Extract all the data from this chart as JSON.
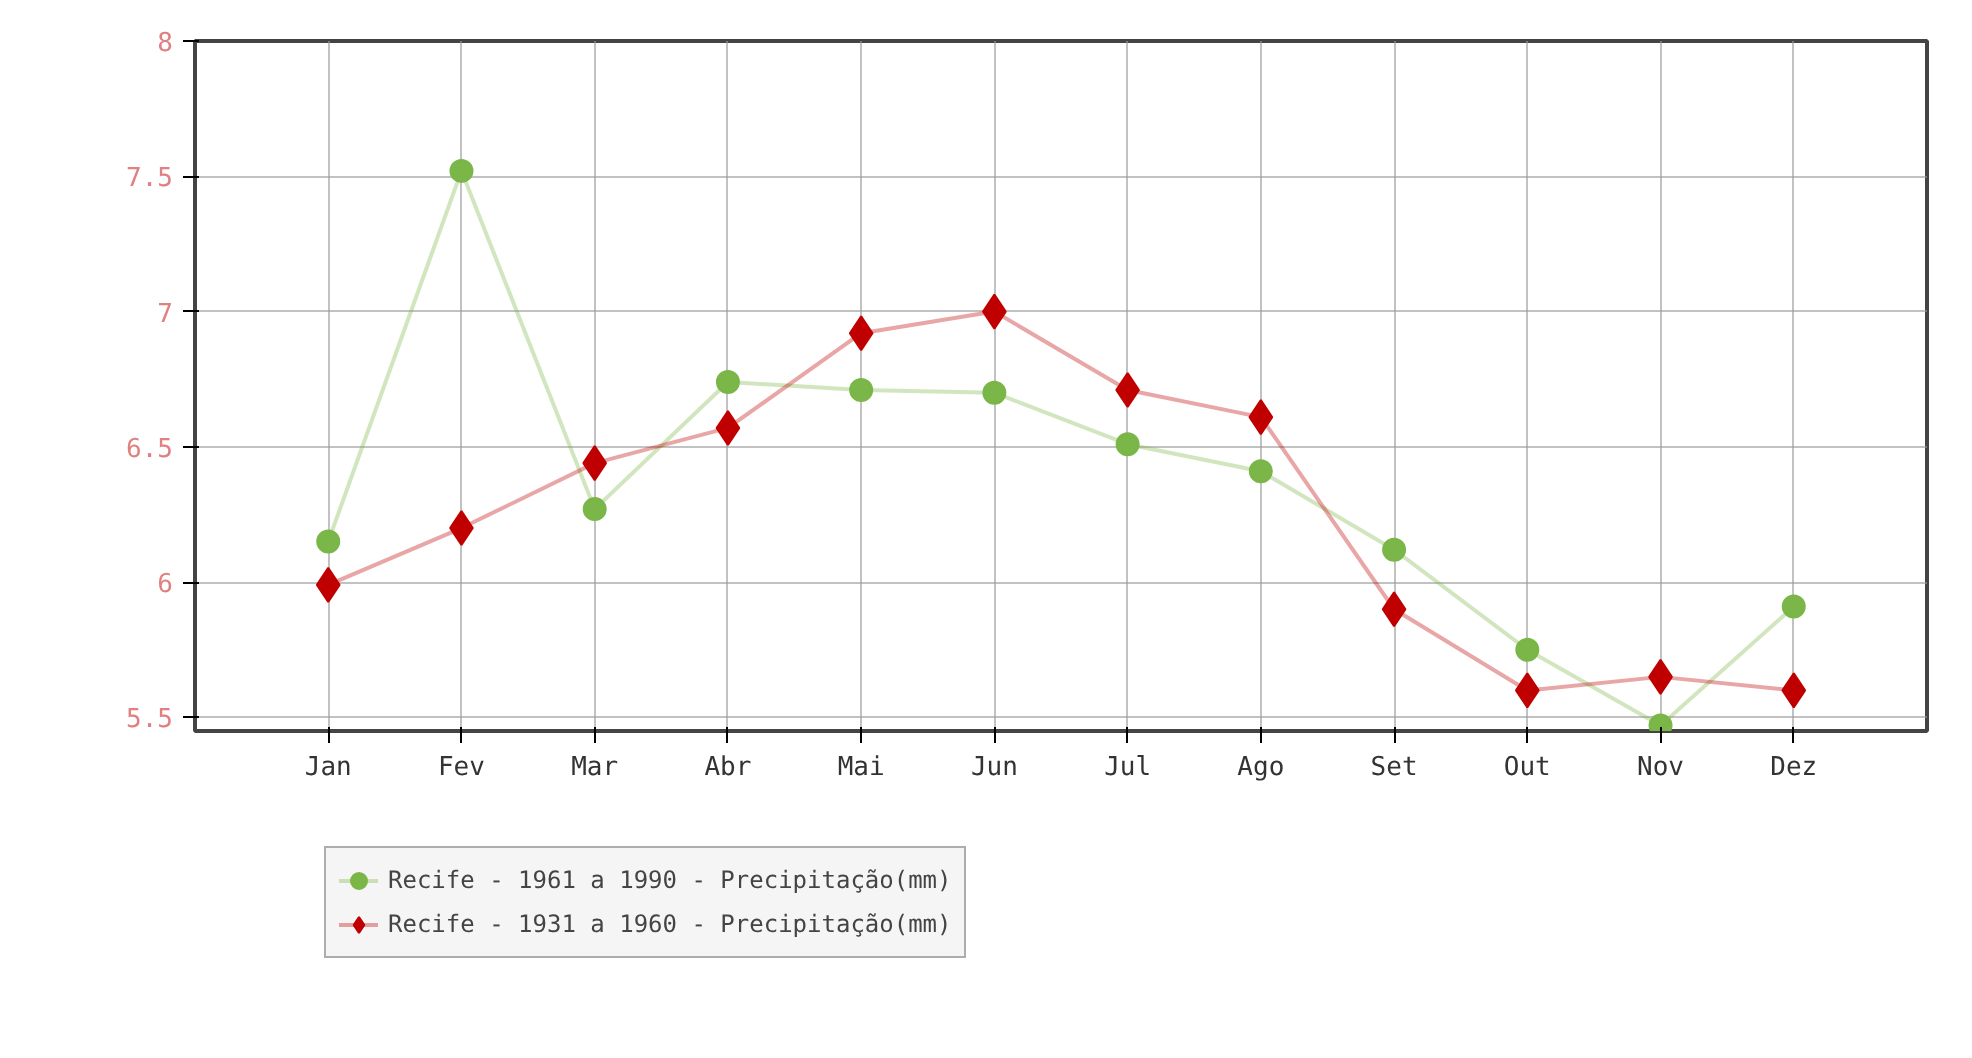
{
  "chart_data": {
    "type": "line",
    "categories": [
      "Jan",
      "Fev",
      "Mar",
      "Abr",
      "Mai",
      "Jun",
      "Jul",
      "Ago",
      "Set",
      "Out",
      "Nov",
      "Dez"
    ],
    "series": [
      {
        "name": "Recife - 1961 a 1990 - Precipitação(mm)",
        "color": "#7ab648",
        "marker": "circle",
        "values": [
          6.15,
          7.52,
          6.27,
          6.74,
          6.71,
          6.7,
          6.51,
          6.41,
          6.12,
          5.75,
          5.47,
          5.91
        ]
      },
      {
        "name": "Recife - 1931 a 1960 - Precipitação(mm)",
        "color": "#c00000",
        "marker": "diamond",
        "values": [
          5.99,
          6.2,
          6.44,
          6.57,
          6.92,
          7.0,
          6.71,
          6.61,
          5.9,
          5.6,
          5.65,
          5.6
        ]
      }
    ],
    "ylim": [
      5.45,
      8
    ],
    "yticks": [
      5.5,
      6,
      6.5,
      7,
      7.5,
      8
    ],
    "grid": true,
    "legend": "bottom"
  }
}
